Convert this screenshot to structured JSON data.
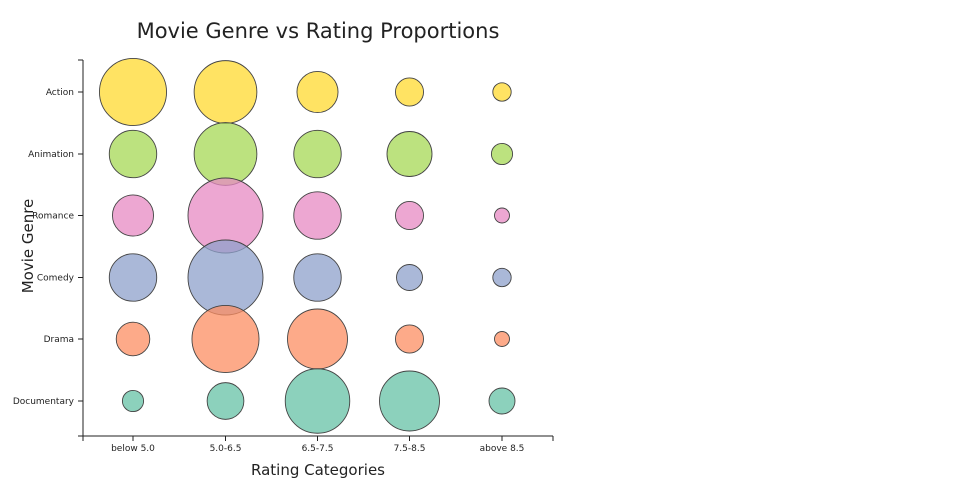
{
  "chart_data": {
    "type": "scatter",
    "title": "Movie Genre vs Rating Proportions",
    "xlabel": "Rating Categories",
    "ylabel": "Movie Genre",
    "categories": [
      "below 5.0",
      "5.0-6.5",
      "6.5-7.5",
      "7.5-8.5",
      "above 8.5"
    ],
    "genres": [
      "Action",
      "Animation",
      "Romance",
      "Comedy",
      "Drama",
      "Documentary"
    ],
    "grid": false,
    "legend": "none",
    "series": [
      {
        "name": "Action",
        "color": "#ffd92f",
        "values": [
          0.4,
          0.35,
          0.15,
          0.07,
          0.03
        ]
      },
      {
        "name": "Animation",
        "color": "#a6d854",
        "values": [
          0.2,
          0.35,
          0.2,
          0.18,
          0.04
        ]
      },
      {
        "name": "Romance",
        "color": "#e78ac3",
        "values": [
          0.15,
          0.5,
          0.2,
          0.07,
          0.02
        ]
      },
      {
        "name": "Comedy",
        "color": "#8da0cb",
        "values": [
          0.2,
          0.5,
          0.2,
          0.06,
          0.03
        ]
      },
      {
        "name": "Drama",
        "color": "#fc8d62",
        "values": [
          0.1,
          0.4,
          0.32,
          0.07,
          0.02
        ]
      },
      {
        "name": "Documentary",
        "color": "#66c2a5",
        "values": [
          0.04,
          0.12,
          0.37,
          0.32,
          0.06
        ]
      }
    ]
  }
}
